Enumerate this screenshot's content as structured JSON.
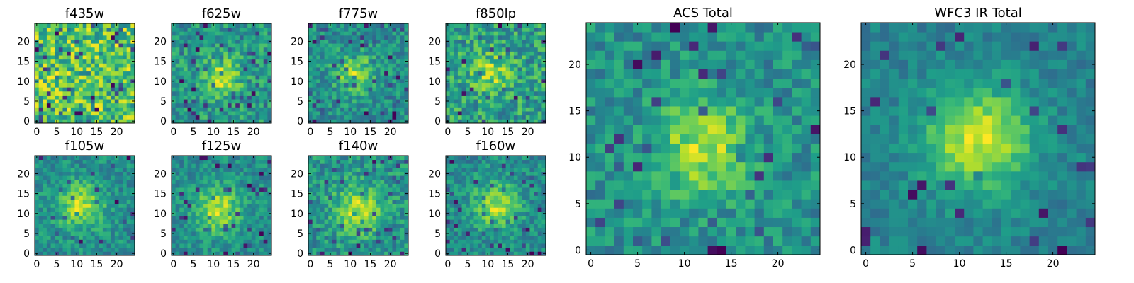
{
  "chart_data": [
    {
      "type": "heatmap",
      "title": "f435w",
      "seed": 11,
      "center": [
        12,
        12
      ],
      "strength": 0.0,
      "spread": 4.0,
      "noise": 0.55,
      "dark_frac": 0.1,
      "xlim": [
        0,
        24
      ],
      "ylim": [
        0,
        24
      ],
      "xticks": [
        0,
        5,
        10,
        15,
        20
      ],
      "yticks": [
        0,
        5,
        10,
        15,
        20
      ],
      "colormap": "viridis"
    },
    {
      "type": "heatmap",
      "title": "f625w",
      "seed": 23,
      "center": [
        12,
        11
      ],
      "strength": 0.4,
      "spread": 3.5,
      "noise": 0.45,
      "dark_frac": 0.06,
      "xlim": [
        0,
        24
      ],
      "ylim": [
        0,
        24
      ],
      "xticks": [
        0,
        5,
        10,
        15,
        20
      ],
      "yticks": [
        0,
        5,
        10,
        15,
        20
      ],
      "colormap": "viridis"
    },
    {
      "type": "heatmap",
      "title": "f775w",
      "seed": 37,
      "center": [
        11,
        12
      ],
      "strength": 0.45,
      "spread": 3.5,
      "noise": 0.45,
      "dark_frac": 0.07,
      "xlim": [
        0,
        24
      ],
      "ylim": [
        0,
        24
      ],
      "xticks": [
        0,
        5,
        10,
        15,
        20
      ],
      "yticks": [
        0,
        5,
        10,
        15,
        20
      ],
      "colormap": "viridis"
    },
    {
      "type": "heatmap",
      "title": "f850lp",
      "seed": 41,
      "center": [
        11,
        12
      ],
      "strength": 0.3,
      "spread": 3.5,
      "noise": 0.5,
      "dark_frac": 0.05,
      "xlim": [
        0,
        24
      ],
      "ylim": [
        0,
        24
      ],
      "xticks": [
        0,
        5,
        10,
        15,
        20
      ],
      "yticks": [
        0,
        5,
        10,
        15,
        20
      ],
      "colormap": "viridis"
    },
    {
      "type": "heatmap",
      "title": "f105w",
      "seed": 53,
      "center": [
        11,
        12
      ],
      "strength": 0.45,
      "spread": 4.0,
      "noise": 0.35,
      "dark_frac": 0.04,
      "xlim": [
        0,
        24
      ],
      "ylim": [
        0,
        24
      ],
      "xticks": [
        0,
        5,
        10,
        15,
        20
      ],
      "yticks": [
        0,
        5,
        10,
        15,
        20
      ],
      "colormap": "viridis"
    },
    {
      "type": "heatmap",
      "title": "f125w",
      "seed": 67,
      "center": [
        11,
        11
      ],
      "strength": 0.5,
      "spread": 4.0,
      "noise": 0.35,
      "dark_frac": 0.04,
      "xlim": [
        0,
        24
      ],
      "ylim": [
        0,
        24
      ],
      "xticks": [
        0,
        5,
        10,
        15,
        20
      ],
      "yticks": [
        0,
        5,
        10,
        15,
        20
      ],
      "colormap": "viridis"
    },
    {
      "type": "heatmap",
      "title": "f140w",
      "seed": 79,
      "center": [
        12,
        11
      ],
      "strength": 0.45,
      "spread": 4.0,
      "noise": 0.4,
      "dark_frac": 0.06,
      "xlim": [
        0,
        24
      ],
      "ylim": [
        0,
        24
      ],
      "xticks": [
        0,
        5,
        10,
        15,
        20
      ],
      "yticks": [
        0,
        5,
        10,
        15,
        20
      ],
      "colormap": "viridis"
    },
    {
      "type": "heatmap",
      "title": "f160w",
      "seed": 83,
      "center": [
        12,
        12
      ],
      "strength": 0.5,
      "spread": 4.0,
      "noise": 0.4,
      "dark_frac": 0.06,
      "xlim": [
        0,
        24
      ],
      "ylim": [
        0,
        24
      ],
      "xticks": [
        0,
        5,
        10,
        15,
        20
      ],
      "yticks": [
        0,
        5,
        10,
        15,
        20
      ],
      "colormap": "viridis"
    },
    {
      "type": "heatmap",
      "title": "ACS Total",
      "seed": 97,
      "center": [
        12,
        11
      ],
      "strength": 0.5,
      "spread": 3.5,
      "noise": 0.4,
      "dark_frac": 0.05,
      "xlim": [
        0,
        24
      ],
      "ylim": [
        0,
        24
      ],
      "xticks": [
        0,
        5,
        10,
        15,
        20
      ],
      "yticks": [
        0,
        5,
        10,
        15,
        20
      ],
      "colormap": "viridis"
    },
    {
      "type": "heatmap",
      "title": "WFC3 IR Total",
      "seed": 101,
      "center": [
        12,
        12
      ],
      "strength": 0.6,
      "spread": 4.0,
      "noise": 0.25,
      "dark_frac": 0.04,
      "xlim": [
        0,
        24
      ],
      "ylim": [
        0,
        24
      ],
      "xticks": [
        0,
        5,
        10,
        15,
        20
      ],
      "yticks": [
        0,
        5,
        10,
        15,
        20
      ],
      "colormap": "viridis"
    }
  ]
}
